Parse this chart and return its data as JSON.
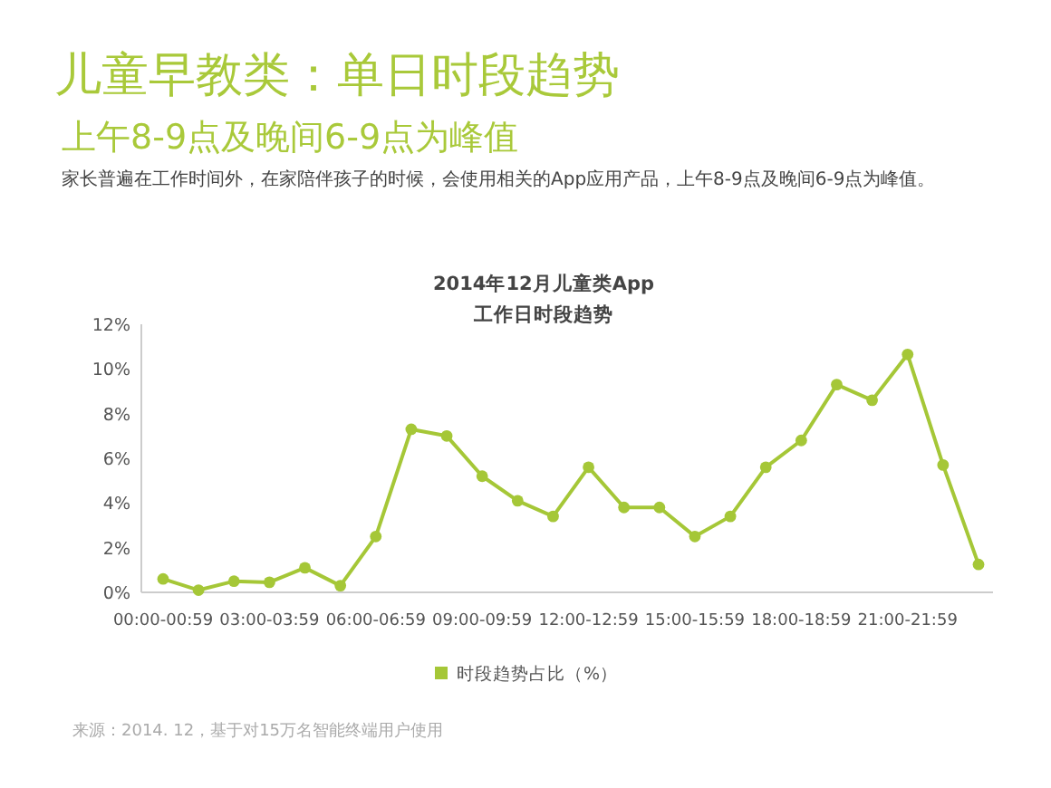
{
  "chart_data": {
    "type": "line",
    "title": "儿童早教类：单日时段趋势",
    "subtitle": "上午8-9点及晚间6-9点为峰值",
    "annotations": [
      "家长普遍在工作时间外，在家陪伴孩子的时候，会使用相关的App应用产品，上午8-9点及晚间6-9点为峰值。",
      "2014年12月儿童类App",
      "工作日时段趋势",
      "来源：2014. 12，基于对15万名智能终端用户使用"
    ],
    "categories": [
      "00:00-00:59",
      null,
      null,
      "03:00-03:59",
      null,
      null,
      "06:00-06:59",
      null,
      null,
      "09:00-09:59",
      null,
      null,
      "12:00-12:59",
      null,
      null,
      "15:00-15:59",
      null,
      null,
      "18:00-18:59",
      null,
      null,
      "21:00-21:59",
      null,
      null
    ],
    "series": [
      {
        "name": "时段趋势占比（%）",
        "color": "#a5c737",
        "values": [
          0.6,
          0.1,
          0.5,
          0.45,
          1.1,
          0.3,
          2.5,
          7.3,
          7.0,
          5.2,
          4.1,
          3.4,
          5.6,
          3.8,
          3.8,
          2.5,
          3.4,
          5.6,
          6.8,
          9.3,
          8.6,
          10.65,
          5.7,
          1.25
        ]
      }
    ],
    "ylim": [
      0,
      12
    ],
    "yticks": [
      {
        "value": 0,
        "label": "0%"
      },
      {
        "value": 2,
        "label": "2%"
      },
      {
        "value": 4,
        "label": "4%"
      },
      {
        "value": 6,
        "label": "6%"
      },
      {
        "value": 8,
        "label": "8%"
      },
      {
        "value": 10,
        "label": "10%"
      },
      {
        "value": 12,
        "label": "12%"
      }
    ],
    "grid": false,
    "legend": "bottom",
    "marker": "circle",
    "line_style": "solid"
  }
}
